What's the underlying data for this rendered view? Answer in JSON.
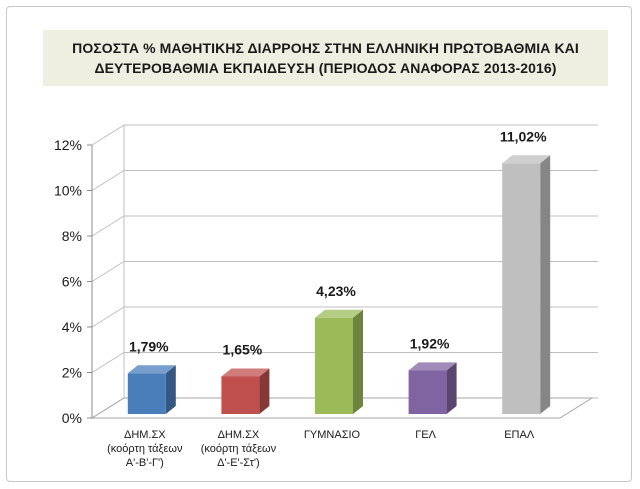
{
  "chart_data": {
    "type": "bar",
    "title_lines": [
      "ΠΟΣΟΣΤΑ % ΜΑΘΗΤΙΚΗΣ ΔΙΑΡΡΟΗΣ ΣΤΗΝ ΕΛΛΗΝΙΚΗ ΠΡΩΤΟΒΑΘΜΙΑ ΚΑΙ",
      "ΔΕΥΤΕΡΟΒΑΘΜΙΑ ΕΚΠΑΙΔΕΥΣΗ (ΠΕΡΙΟΔΟΣ ΑΝΑΦΟΡΑΣ 2013-2016)"
    ],
    "categories": [
      [
        "ΔΗΜ.ΣΧ",
        "(κοόρτη τάξεων",
        "Α'-Β'-Γ')"
      ],
      [
        "ΔΗΜ.ΣΧ",
        "(κοόρτη τάξεων",
        "Δ'-Ε'-Στ')"
      ],
      [
        "ΓΥΜΝΑΣΙΟ"
      ],
      [
        "ΓΕΛ"
      ],
      [
        "ΕΠΑΛ"
      ]
    ],
    "values": [
      1.79,
      1.65,
      4.23,
      1.92,
      11.02
    ],
    "data_labels": [
      "1,79%",
      "1,65%",
      "4,23%",
      "1,92%",
      "11,02%"
    ],
    "colors": [
      "#4a7ebb",
      "#c0504d",
      "#9bbb59",
      "#8064a2",
      "#bfbfbf"
    ],
    "y_ticks": [
      0,
      2,
      4,
      6,
      8,
      10,
      12
    ],
    "y_tick_labels": [
      "0%",
      "2%",
      "4%",
      "6%",
      "8%",
      "10%",
      "12%"
    ],
    "ylim": [
      0,
      12
    ],
    "grid": true,
    "style": "3d-column"
  }
}
